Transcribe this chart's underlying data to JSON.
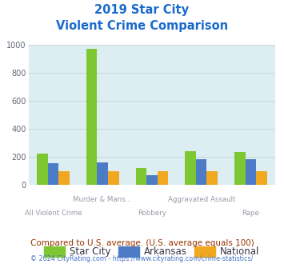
{
  "title_line1": "2019 Star City",
  "title_line2": "Violent Crime Comparison",
  "categories_top": [
    "Murder & Mans...",
    "Aggravated Assault"
  ],
  "categories_bottom": [
    "All Violent Crime",
    "Robbery",
    "Rape"
  ],
  "categories_all": [
    "All Violent Crime",
    "Murder & Mans...",
    "Robbery",
    "Aggravated Assault",
    "Rape"
  ],
  "series": {
    "Star City": [
      225,
      970,
      120,
      240,
      232
    ],
    "Arkansas": [
      155,
      160,
      68,
      185,
      183
    ],
    "National": [
      100,
      100,
      100,
      100,
      100
    ]
  },
  "colors": {
    "Star City": "#7dc832",
    "Arkansas": "#4d7cc7",
    "National": "#f0a820"
  },
  "ylim": [
    0,
    1000
  ],
  "yticks": [
    0,
    200,
    400,
    600,
    800,
    1000
  ],
  "bg_color": "#ddeef2",
  "grid_color": "#c0d4d8",
  "title_color": "#1a6acc",
  "xtick_color": "#999aaa",
  "footnote1": "Compared to U.S. average. (U.S. average equals 100)",
  "footnote2": "© 2024 CityRating.com - https://www.cityrating.com/crime-statistics/",
  "footnote1_color": "#993300",
  "footnote2_color": "#4472c4",
  "bar_width": 0.22
}
